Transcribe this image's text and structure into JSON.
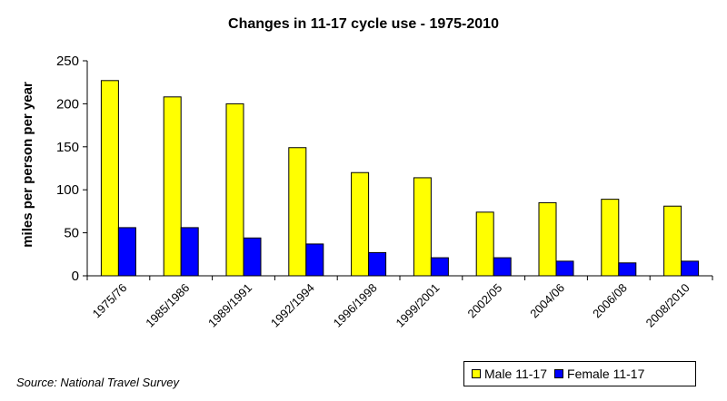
{
  "chart_data": {
    "type": "bar",
    "title": "Changes in 11-17 cycle use - 1975-2010",
    "xlabel": "",
    "ylabel": "miles per person per year",
    "ylim": [
      0,
      250
    ],
    "yticks": [
      0,
      50,
      100,
      150,
      200,
      250
    ],
    "categories": [
      "1975/76",
      "1985/1986",
      "1989/1991",
      "1992/1994",
      "1996/1998",
      "1999/2001",
      "2002/05",
      "2004/06",
      "2006/08",
      "2008/2010"
    ],
    "series": [
      {
        "name": "Male 11-17",
        "color": "#ffff00",
        "values": [
          227,
          208,
          200,
          149,
          120,
          114,
          74,
          85,
          89,
          81
        ]
      },
      {
        "name": "Female 11-17",
        "color": "#0000ff",
        "values": [
          56,
          56,
          44,
          37,
          27,
          21,
          21,
          17,
          15,
          17
        ]
      }
    ],
    "grid": false,
    "legend": "bottom-right"
  },
  "source": "Source: National Travel Survey"
}
